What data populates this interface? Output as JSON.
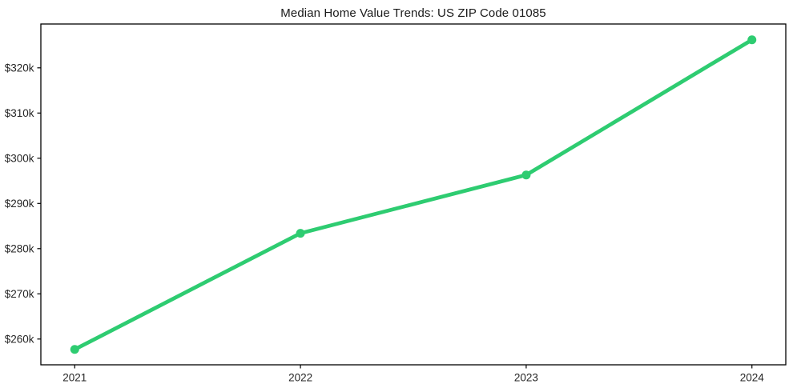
{
  "chart_data": {
    "type": "line",
    "title": "Median Home Value Trends: US ZIP Code 01085",
    "x": [
      2021,
      2022,
      2023,
      2024
    ],
    "x_tick_labels": [
      "2021",
      "2022",
      "2023",
      "2024"
    ],
    "values_k": [
      257.7,
      283.4,
      296.3,
      326.2
    ],
    "y_ticks_k": [
      260,
      270,
      280,
      290,
      300,
      310,
      320
    ],
    "y_tick_labels": [
      "$260k",
      "$270k",
      "$280k",
      "$290k",
      "$300k",
      "$310k",
      "$320k"
    ],
    "xlim": [
      2020.85,
      2024.15
    ],
    "ylim_k": [
      254.3,
      329.7
    ],
    "grid": false,
    "legend": "none",
    "line_color": "#2ecc71",
    "marker": "circle",
    "axis_color": "#000000",
    "text_color": "#262626",
    "background_color": "#ffffff"
  }
}
